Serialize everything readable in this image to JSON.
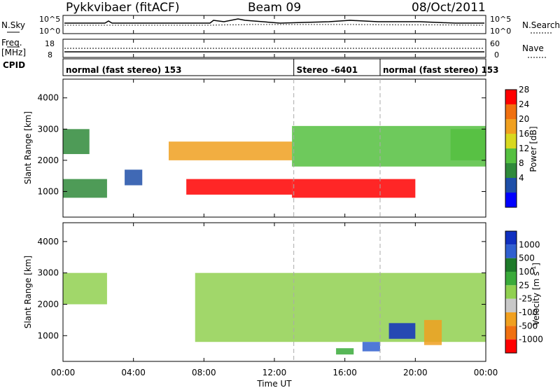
{
  "header": {
    "radar": "Pykkvibaer (fitACF)",
    "beam": "Beam 09",
    "date": "08/Oct/2011"
  },
  "panels": {
    "nsky": {
      "label": "N.Sky",
      "right_label": "N.Search",
      "left_ticks": [
        "10^5",
        "10^0"
      ],
      "right_ticks": [
        "10^5",
        "10^0"
      ]
    },
    "freq": {
      "label_line1": "Freq.",
      "label_line2": "[MHz]",
      "right_label": "Nave",
      "left_ticks": [
        "18",
        "8"
      ],
      "right_ticks": [
        "60",
        "0"
      ]
    },
    "cpid": {
      "label": "CPID",
      "segments": [
        {
          "text": "normal (fast stereo) 153",
          "start_hour": 0,
          "end_hour": 13.1
        },
        {
          "text": "Stereo -6401",
          "start_hour": 13.1,
          "end_hour": 18.0
        },
        {
          "text": "normal (fast stereo) 153",
          "start_hour": 18.0,
          "end_hour": 24
        }
      ]
    }
  },
  "axes": {
    "x_ticks": [
      "00:00",
      "04:00",
      "08:00",
      "12:00",
      "16:00",
      "20:00",
      "00:00"
    ],
    "xlabel": "Time UT",
    "ylabel": "Slant Range [km]",
    "y_ticks": [
      "4000",
      "3000",
      "2000",
      "1000"
    ]
  },
  "power_colorbar": {
    "label": "Power [dB]",
    "ticks": [
      "28",
      "24",
      "20",
      "16",
      "12",
      "8",
      "4"
    ],
    "colors": [
      "#0000ff",
      "#1e4fa8",
      "#2f8a3a",
      "#55c040",
      "#d8d820",
      "#f0a020",
      "#f07010",
      "#ff0000"
    ]
  },
  "velocity_colorbar": {
    "label_main": "Velocity [m s",
    "label_sup": "-1",
    "label_end": "]",
    "ticks": [
      "1000",
      "500",
      "100",
      "25",
      "-25",
      "-100",
      "-500",
      "-1000"
    ],
    "colors": [
      "#1030c0",
      "#3060d0",
      "#1e7a2a",
      "#3aaa3a",
      "#90d050",
      "#c8c8c8",
      "#f0a020",
      "#f07010",
      "#ff0000"
    ]
  },
  "chart_data": {
    "type": "heatmap",
    "x_range_hours": [
      0,
      24
    ],
    "y_range_km": [
      180,
      4600
    ],
    "y_ticks_km": [
      1000,
      2000,
      3000,
      4000
    ],
    "panels": [
      {
        "name": "Power [dB]",
        "scale": [
          0,
          30
        ],
        "features": [
          {
            "start_hour": 0.0,
            "end_hour": 1.5,
            "range_low_km": 2200,
            "range_high_km": 3000,
            "value": 8
          },
          {
            "start_hour": 0.0,
            "end_hour": 2.5,
            "range_low_km": 800,
            "range_high_km": 1400,
            "value": 8
          },
          {
            "start_hour": 3.5,
            "end_hour": 4.5,
            "range_low_km": 1200,
            "range_high_km": 1700,
            "value": 6
          },
          {
            "start_hour": 6.0,
            "end_hour": 13.0,
            "range_low_km": 2000,
            "range_high_km": 2600,
            "value": 20
          },
          {
            "start_hour": 7.0,
            "end_hour": 13.0,
            "range_low_km": 900,
            "range_high_km": 1400,
            "value": 28
          },
          {
            "start_hour": 13.0,
            "end_hour": 20.0,
            "range_low_km": 800,
            "range_high_km": 1400,
            "value": 27
          },
          {
            "start_hour": 13.0,
            "end_hour": 24.0,
            "range_low_km": 1800,
            "range_high_km": 3100,
            "value": 12
          },
          {
            "start_hour": 22.0,
            "end_hour": 24.0,
            "range_low_km": 2000,
            "range_high_km": 3000,
            "value": 14
          }
        ]
      },
      {
        "name": "Velocity [m s-1]",
        "scale": [
          -1000,
          1000
        ],
        "features": [
          {
            "start_hour": 0.0,
            "end_hour": 2.5,
            "range_low_km": 2000,
            "range_high_km": 3000,
            "value": 0
          },
          {
            "start_hour": 7.5,
            "end_hour": 24.0,
            "range_low_km": 800,
            "range_high_km": 3000,
            "value": 0
          },
          {
            "start_hour": 15.5,
            "end_hour": 16.5,
            "range_low_km": 400,
            "range_high_km": 600,
            "value": 50
          },
          {
            "start_hour": 17.0,
            "end_hour": 18.0,
            "range_low_km": 500,
            "range_high_km": 800,
            "value": 500
          },
          {
            "start_hour": 18.5,
            "end_hour": 20.0,
            "range_low_km": 900,
            "range_high_km": 1400,
            "value": 1000
          },
          {
            "start_hour": 20.5,
            "end_hour": 21.5,
            "range_low_km": 700,
            "range_high_km": 1500,
            "value": -300
          }
        ]
      }
    ]
  }
}
